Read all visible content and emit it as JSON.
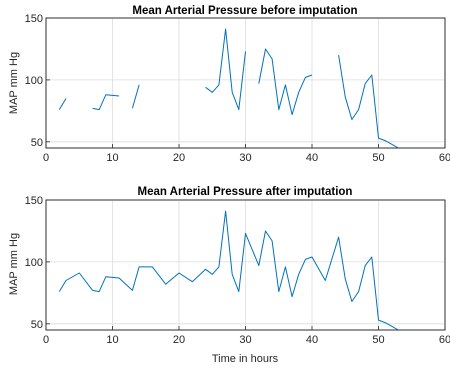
{
  "chart_data": [
    {
      "type": "line",
      "title": "Mean Arterial Pressure before imputation",
      "xlabel": "",
      "ylabel": "MAP mm Hg",
      "xlim": [
        0,
        60
      ],
      "ylim": [
        45,
        150
      ],
      "xticks": [
        0,
        10,
        20,
        30,
        40,
        50,
        60
      ],
      "yticks": [
        50,
        100,
        150
      ],
      "grid": true,
      "color": "#0072BD",
      "segments": [
        [
          [
            2,
            76
          ],
          [
            3,
            85
          ]
        ],
        [
          [
            7,
            77
          ],
          [
            8,
            76
          ],
          [
            9,
            88
          ],
          [
            11,
            87
          ]
        ],
        [
          [
            13,
            77
          ],
          [
            14,
            96
          ]
        ],
        [
          [
            24,
            94
          ],
          [
            25,
            90
          ],
          [
            26,
            96
          ],
          [
            27,
            141
          ],
          [
            28,
            90
          ],
          [
            29,
            76
          ],
          [
            30,
            123
          ]
        ],
        [
          [
            32,
            97
          ],
          [
            33,
            125
          ],
          [
            34,
            117
          ],
          [
            35,
            76
          ],
          [
            36,
            96
          ],
          [
            37,
            72
          ],
          [
            38,
            90
          ],
          [
            39,
            102
          ],
          [
            40,
            104
          ]
        ],
        [
          [
            44,
            120
          ],
          [
            45,
            86
          ],
          [
            46,
            68
          ],
          [
            47,
            76
          ],
          [
            48,
            97
          ],
          [
            49,
            104
          ],
          [
            50,
            53
          ],
          [
            51,
            51
          ],
          [
            52,
            48
          ],
          [
            53,
            45
          ],
          [
            54,
            45
          ]
        ]
      ]
    },
    {
      "type": "line",
      "title": "Mean Arterial Pressure after imputation",
      "xlabel": "Time in hours",
      "ylabel": "MAP mm Hg",
      "xlim": [
        0,
        60
      ],
      "ylim": [
        45,
        150
      ],
      "xticks": [
        0,
        10,
        20,
        30,
        40,
        50,
        60
      ],
      "yticks": [
        50,
        100,
        150
      ],
      "grid": true,
      "color": "#0072BD",
      "segments": [
        [
          [
            2,
            76
          ],
          [
            3,
            85
          ],
          [
            5,
            91
          ],
          [
            7,
            77
          ],
          [
            8,
            76
          ],
          [
            9,
            88
          ],
          [
            11,
            87
          ],
          [
            13,
            77
          ],
          [
            14,
            96
          ],
          [
            16,
            96
          ],
          [
            18,
            82
          ],
          [
            20,
            91
          ],
          [
            22,
            84
          ],
          [
            24,
            94
          ],
          [
            25,
            90
          ],
          [
            26,
            96
          ],
          [
            27,
            141
          ],
          [
            28,
            90
          ],
          [
            29,
            76
          ],
          [
            30,
            123
          ],
          [
            32,
            97
          ],
          [
            33,
            125
          ],
          [
            34,
            117
          ],
          [
            35,
            76
          ],
          [
            36,
            96
          ],
          [
            37,
            72
          ],
          [
            38,
            90
          ],
          [
            39,
            102
          ],
          [
            40,
            104
          ],
          [
            42,
            85
          ],
          [
            44,
            120
          ],
          [
            45,
            86
          ],
          [
            46,
            68
          ],
          [
            47,
            76
          ],
          [
            48,
            97
          ],
          [
            49,
            104
          ],
          [
            50,
            53
          ],
          [
            51,
            51
          ],
          [
            52,
            48
          ],
          [
            53,
            45
          ],
          [
            54,
            45
          ]
        ]
      ]
    }
  ]
}
